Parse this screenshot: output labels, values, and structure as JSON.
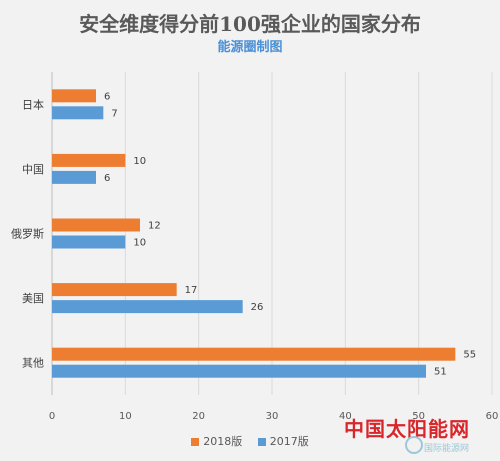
{
  "chart_data": {
    "type": "bar",
    "orientation": "horizontal",
    "title": "安全维度得分前100强企业的国家分布",
    "subtitle": "能源圈制图",
    "categories": [
      "日本",
      "中国",
      "俄罗斯",
      "美国",
      "其他"
    ],
    "series": [
      {
        "name": "2018版",
        "color": "#ed7d31",
        "values": [
          6,
          10,
          12,
          17,
          55
        ]
      },
      {
        "name": "2017版",
        "color": "#5b9bd5",
        "values": [
          7,
          6,
          10,
          26,
          51
        ]
      }
    ],
    "xlim": [
      0,
      60
    ],
    "xticks": [
      0,
      10,
      20,
      30,
      40,
      50,
      60
    ],
    "grid": true,
    "legend_position": "bottom"
  },
  "watermark": {
    "main": "中国太阳能网",
    "sub": "国际能源网"
  }
}
